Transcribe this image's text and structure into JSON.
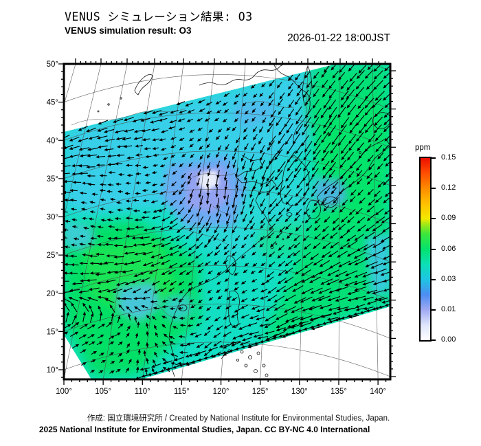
{
  "header": {
    "title_jp": "VENUS シミュレーション結果: O3",
    "title_en": "VENUS simulation result: O3",
    "timestamp": "2026-01-22 18:00JST"
  },
  "footer": {
    "credit_line": "作成: 国立環境研究所 / Created by National Institute for Environmental Studies, Japan.",
    "copyright_line": "©2025 National Institute for Environmental Studies, Japan. CC BY-NC 4.0 International"
  },
  "colorbar": {
    "unit": "ppm",
    "tick_labels_top_to_bottom": [
      "0.15",
      "0.12",
      "0.09",
      "0.06",
      "0.03",
      "0.01",
      "0.00"
    ],
    "gradient_stops_bottom_to_top": [
      {
        "value": 0.0,
        "color": "#ffffff"
      },
      {
        "value": 0.005,
        "color": "#dfe6fb"
      },
      {
        "value": 0.01,
        "color": "#9fa9f2"
      },
      {
        "value": 0.02,
        "color": "#4d8df2"
      },
      {
        "value": 0.03,
        "color": "#1fc4e2"
      },
      {
        "value": 0.045,
        "color": "#0ce0b6"
      },
      {
        "value": 0.06,
        "color": "#04e26e"
      },
      {
        "value": 0.075,
        "color": "#3ce63c"
      },
      {
        "value": 0.085,
        "color": "#a8e814"
      },
      {
        "value": 0.09,
        "color": "#f2e800"
      },
      {
        "value": 0.105,
        "color": "#ffc000"
      },
      {
        "value": 0.12,
        "color": "#ff8c00"
      },
      {
        "value": 0.135,
        "color": "#ff4e00"
      },
      {
        "value": 0.15,
        "color": "#ec0f00"
      }
    ]
  },
  "axes": {
    "lat_labels": [
      "50°",
      "45°",
      "40°",
      "35°",
      "30°",
      "25°",
      "20°",
      "15°",
      "10°"
    ],
    "lon_labels": [
      "100°",
      "105°",
      "110°",
      "115°",
      "120°",
      "125°",
      "130°",
      "135°",
      "140°"
    ]
  },
  "chart_data": {
    "type": "heatmap",
    "variable": "O3 surface concentration",
    "model": "VENUS",
    "unit": "ppm",
    "valid_time": "2026-01-22 18:00JST",
    "xlabel": "",
    "ylabel": "",
    "lon_ticks_deg_e": [
      100,
      105,
      110,
      115,
      120,
      125,
      130,
      135,
      140
    ],
    "lat_ticks_deg_n": [
      10,
      15,
      20,
      25,
      30,
      35,
      40,
      45,
      50
    ],
    "colorbar_ticks_ppm": [
      0.0,
      0.01,
      0.03,
      0.06,
      0.09,
      0.12,
      0.15
    ],
    "colorbar_range_ppm": [
      0.0,
      0.15
    ],
    "overlay": "wind vector arrows, predominantly pointing toward the west-southwest; eastward near Indochina",
    "coverage_note": "data swath tilted ~14 degrees; white no-data wedges in upper-left and lower-right corners of the map",
    "no_data_color": "#ffffff",
    "field_summary": [
      {
        "region": "most of swath (China, Yellow Sea, Korea)",
        "o3_ppm": "0.03-0.045",
        "color": "cyan-turquoise"
      },
      {
        "region": "east of ~128E around Japan and top-right corner",
        "o3_ppm": "0.05-0.06",
        "color": "green"
      },
      {
        "region": "southwest China / Indochina (bottom-left)",
        "o3_ppm": "0.05-0.06",
        "color": "green"
      },
      {
        "region": "North China Plain ~35-38N 114-119E",
        "o3_ppm": "0.00-0.02",
        "color": "periwinkle blue with near-white core"
      },
      {
        "region": "Korea Bay and patches near 22N 108-112E",
        "o3_ppm": "0.02-0.03",
        "color": "light blue"
      }
    ]
  }
}
